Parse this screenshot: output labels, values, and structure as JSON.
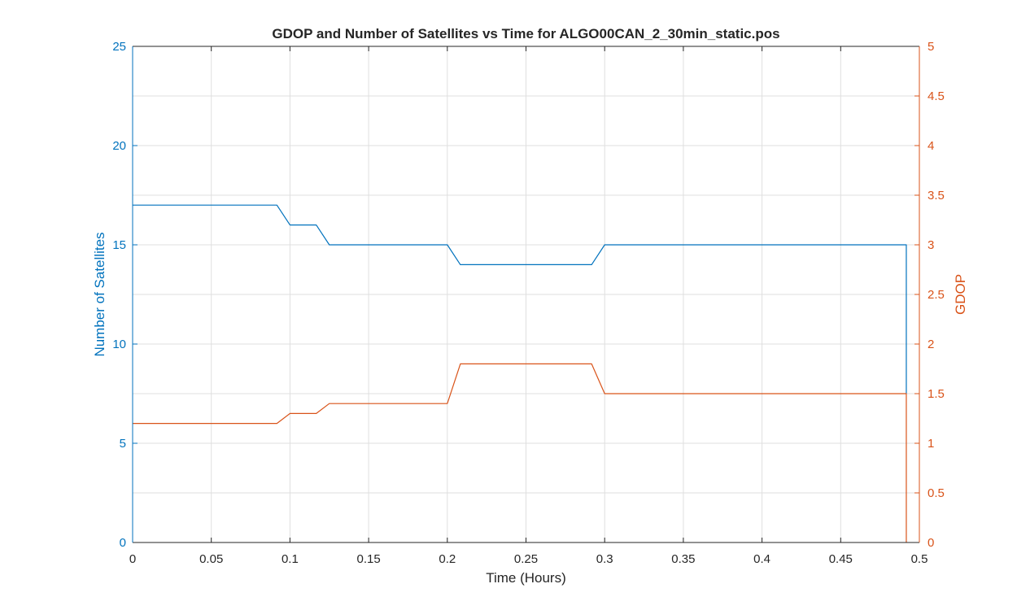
{
  "chart_data": {
    "type": "line",
    "title": "GDOP and Number of Satellites vs Time for ALGO00CAN_2_30min_static.pos",
    "xlabel": "Time (Hours)",
    "ylabel_left": "Number of Satellites",
    "ylabel_right": "GDOP",
    "xlim": [
      0,
      0.5
    ],
    "ylim_left": [
      0,
      25
    ],
    "ylim_right": [
      0,
      5
    ],
    "x_ticks": [
      "0",
      "0.05",
      "0.1",
      "0.15",
      "0.2",
      "0.25",
      "0.3",
      "0.35",
      "0.4",
      "0.45",
      "0.5"
    ],
    "y_ticks_left": [
      "0",
      "5",
      "10",
      "15",
      "20",
      "25"
    ],
    "y_ticks_right": [
      "0",
      "0.5",
      "1",
      "1.5",
      "2",
      "2.5",
      "3",
      "3.5",
      "4",
      "4.5",
      "5"
    ],
    "grid": true,
    "series": [
      {
        "axis": "left",
        "color": "#0072BD",
        "x": [
          0,
          0.0917,
          0.1,
          0.1167,
          0.125,
          0.2,
          0.2083,
          0.2917,
          0.3,
          0.4917,
          0.4917
        ],
        "y": [
          17,
          17,
          16,
          16,
          15,
          15,
          14,
          14,
          15,
          15,
          7.5
        ]
      },
      {
        "axis": "right",
        "color": "#D95319",
        "x": [
          0,
          0.0917,
          0.1,
          0.1167,
          0.125,
          0.2,
          0.2083,
          0.2917,
          0.3,
          0.4917,
          0.4917
        ],
        "y": [
          1.2,
          1.2,
          1.3,
          1.3,
          1.4,
          1.4,
          1.8,
          1.8,
          1.5,
          1.5,
          0
        ]
      }
    ],
    "colors": {
      "left_axis": "#0072BD",
      "right_axis": "#D95319",
      "grid": "#DFDFDF",
      "text": "#262626"
    }
  }
}
